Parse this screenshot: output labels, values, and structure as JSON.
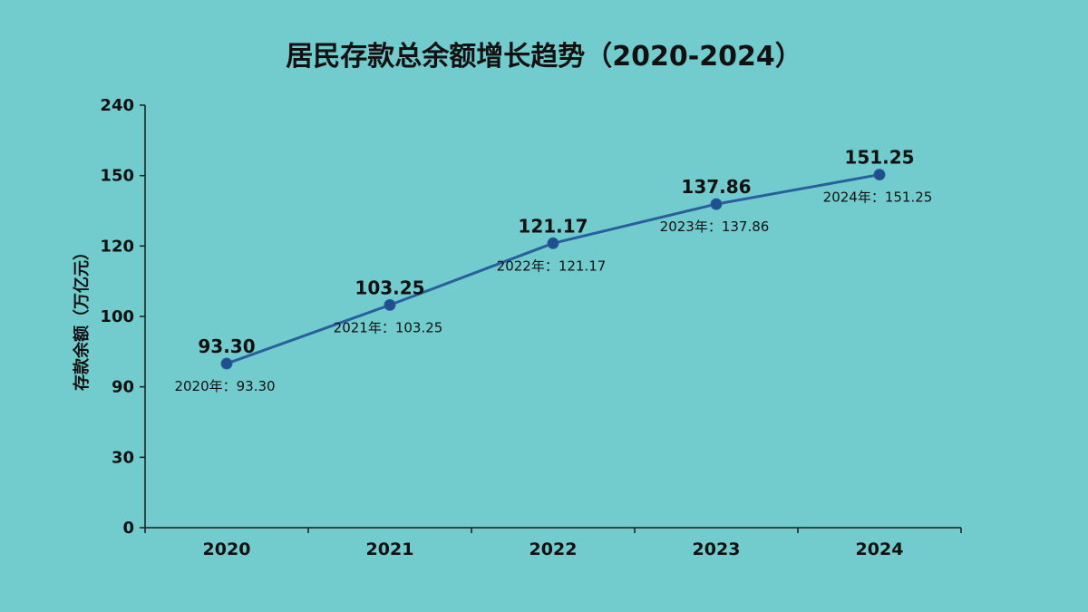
{
  "chart_data": {
    "type": "line",
    "title": "居民存款总余额增长趋势（2020-2024）",
    "ylabel": "存款余额（万亿元）",
    "xlabel": "",
    "categories": [
      "2020",
      "2021",
      "2022",
      "2023",
      "2024"
    ],
    "values": [
      93.3,
      103.25,
      121.17,
      137.86,
      151.25
    ],
    "value_labels": [
      "93.30",
      "103.25",
      "121.17",
      "137.86",
      "151.25"
    ],
    "annotations": [
      "2020年：93.30",
      "2021年：103.25",
      "2022年：121.17",
      "2023年：137.86",
      "2024年：151.25"
    ],
    "ytick_labels": [
      "0",
      "30",
      "90",
      "100",
      "120",
      "150",
      "240"
    ],
    "ylim": [
      0,
      240
    ],
    "grid": false,
    "legend": "none",
    "colors": {
      "background": "#72cccd",
      "line": "#2a5f9e",
      "marker": "#1f4f8c",
      "axis": "#1a1a1a"
    }
  }
}
